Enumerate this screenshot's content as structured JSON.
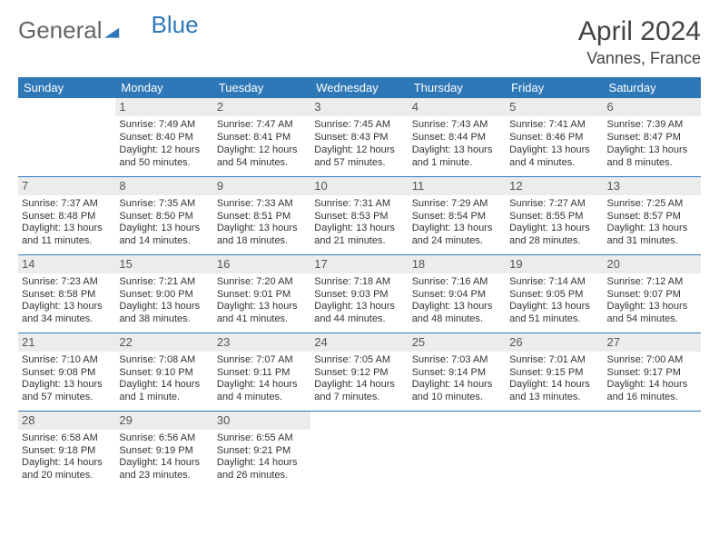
{
  "brand": {
    "part1": "General",
    "part2": "Blue"
  },
  "title": "April 2024",
  "location": "Vannes, France",
  "colors": {
    "header_bg": "#2f78b8",
    "header_fg": "#ffffff",
    "daynum_bg": "#ececec",
    "rule": "#2f78b8",
    "text": "#333333"
  },
  "weekdays": [
    "Sunday",
    "Monday",
    "Tuesday",
    "Wednesday",
    "Thursday",
    "Friday",
    "Saturday"
  ],
  "weeks": [
    [
      {
        "n": "",
        "sr": "",
        "ss": "",
        "d1": "",
        "d2": "",
        "empty": true
      },
      {
        "n": "1",
        "sr": "Sunrise: 7:49 AM",
        "ss": "Sunset: 8:40 PM",
        "d1": "Daylight: 12 hours",
        "d2": "and 50 minutes."
      },
      {
        "n": "2",
        "sr": "Sunrise: 7:47 AM",
        "ss": "Sunset: 8:41 PM",
        "d1": "Daylight: 12 hours",
        "d2": "and 54 minutes."
      },
      {
        "n": "3",
        "sr": "Sunrise: 7:45 AM",
        "ss": "Sunset: 8:43 PM",
        "d1": "Daylight: 12 hours",
        "d2": "and 57 minutes."
      },
      {
        "n": "4",
        "sr": "Sunrise: 7:43 AM",
        "ss": "Sunset: 8:44 PM",
        "d1": "Daylight: 13 hours",
        "d2": "and 1 minute."
      },
      {
        "n": "5",
        "sr": "Sunrise: 7:41 AM",
        "ss": "Sunset: 8:46 PM",
        "d1": "Daylight: 13 hours",
        "d2": "and 4 minutes."
      },
      {
        "n": "6",
        "sr": "Sunrise: 7:39 AM",
        "ss": "Sunset: 8:47 PM",
        "d1": "Daylight: 13 hours",
        "d2": "and 8 minutes."
      }
    ],
    [
      {
        "n": "7",
        "sr": "Sunrise: 7:37 AM",
        "ss": "Sunset: 8:48 PM",
        "d1": "Daylight: 13 hours",
        "d2": "and 11 minutes."
      },
      {
        "n": "8",
        "sr": "Sunrise: 7:35 AM",
        "ss": "Sunset: 8:50 PM",
        "d1": "Daylight: 13 hours",
        "d2": "and 14 minutes."
      },
      {
        "n": "9",
        "sr": "Sunrise: 7:33 AM",
        "ss": "Sunset: 8:51 PM",
        "d1": "Daylight: 13 hours",
        "d2": "and 18 minutes."
      },
      {
        "n": "10",
        "sr": "Sunrise: 7:31 AM",
        "ss": "Sunset: 8:53 PM",
        "d1": "Daylight: 13 hours",
        "d2": "and 21 minutes."
      },
      {
        "n": "11",
        "sr": "Sunrise: 7:29 AM",
        "ss": "Sunset: 8:54 PM",
        "d1": "Daylight: 13 hours",
        "d2": "and 24 minutes."
      },
      {
        "n": "12",
        "sr": "Sunrise: 7:27 AM",
        "ss": "Sunset: 8:55 PM",
        "d1": "Daylight: 13 hours",
        "d2": "and 28 minutes."
      },
      {
        "n": "13",
        "sr": "Sunrise: 7:25 AM",
        "ss": "Sunset: 8:57 PM",
        "d1": "Daylight: 13 hours",
        "d2": "and 31 minutes."
      }
    ],
    [
      {
        "n": "14",
        "sr": "Sunrise: 7:23 AM",
        "ss": "Sunset: 8:58 PM",
        "d1": "Daylight: 13 hours",
        "d2": "and 34 minutes."
      },
      {
        "n": "15",
        "sr": "Sunrise: 7:21 AM",
        "ss": "Sunset: 9:00 PM",
        "d1": "Daylight: 13 hours",
        "d2": "and 38 minutes."
      },
      {
        "n": "16",
        "sr": "Sunrise: 7:20 AM",
        "ss": "Sunset: 9:01 PM",
        "d1": "Daylight: 13 hours",
        "d2": "and 41 minutes."
      },
      {
        "n": "17",
        "sr": "Sunrise: 7:18 AM",
        "ss": "Sunset: 9:03 PM",
        "d1": "Daylight: 13 hours",
        "d2": "and 44 minutes."
      },
      {
        "n": "18",
        "sr": "Sunrise: 7:16 AM",
        "ss": "Sunset: 9:04 PM",
        "d1": "Daylight: 13 hours",
        "d2": "and 48 minutes."
      },
      {
        "n": "19",
        "sr": "Sunrise: 7:14 AM",
        "ss": "Sunset: 9:05 PM",
        "d1": "Daylight: 13 hours",
        "d2": "and 51 minutes."
      },
      {
        "n": "20",
        "sr": "Sunrise: 7:12 AM",
        "ss": "Sunset: 9:07 PM",
        "d1": "Daylight: 13 hours",
        "d2": "and 54 minutes."
      }
    ],
    [
      {
        "n": "21",
        "sr": "Sunrise: 7:10 AM",
        "ss": "Sunset: 9:08 PM",
        "d1": "Daylight: 13 hours",
        "d2": "and 57 minutes."
      },
      {
        "n": "22",
        "sr": "Sunrise: 7:08 AM",
        "ss": "Sunset: 9:10 PM",
        "d1": "Daylight: 14 hours",
        "d2": "and 1 minute."
      },
      {
        "n": "23",
        "sr": "Sunrise: 7:07 AM",
        "ss": "Sunset: 9:11 PM",
        "d1": "Daylight: 14 hours",
        "d2": "and 4 minutes."
      },
      {
        "n": "24",
        "sr": "Sunrise: 7:05 AM",
        "ss": "Sunset: 9:12 PM",
        "d1": "Daylight: 14 hours",
        "d2": "and 7 minutes."
      },
      {
        "n": "25",
        "sr": "Sunrise: 7:03 AM",
        "ss": "Sunset: 9:14 PM",
        "d1": "Daylight: 14 hours",
        "d2": "and 10 minutes."
      },
      {
        "n": "26",
        "sr": "Sunrise: 7:01 AM",
        "ss": "Sunset: 9:15 PM",
        "d1": "Daylight: 14 hours",
        "d2": "and 13 minutes."
      },
      {
        "n": "27",
        "sr": "Sunrise: 7:00 AM",
        "ss": "Sunset: 9:17 PM",
        "d1": "Daylight: 14 hours",
        "d2": "and 16 minutes."
      }
    ],
    [
      {
        "n": "28",
        "sr": "Sunrise: 6:58 AM",
        "ss": "Sunset: 9:18 PM",
        "d1": "Daylight: 14 hours",
        "d2": "and 20 minutes."
      },
      {
        "n": "29",
        "sr": "Sunrise: 6:56 AM",
        "ss": "Sunset: 9:19 PM",
        "d1": "Daylight: 14 hours",
        "d2": "and 23 minutes."
      },
      {
        "n": "30",
        "sr": "Sunrise: 6:55 AM",
        "ss": "Sunset: 9:21 PM",
        "d1": "Daylight: 14 hours",
        "d2": "and 26 minutes."
      },
      {
        "n": "",
        "sr": "",
        "ss": "",
        "d1": "",
        "d2": "",
        "empty": true
      },
      {
        "n": "",
        "sr": "",
        "ss": "",
        "d1": "",
        "d2": "",
        "empty": true
      },
      {
        "n": "",
        "sr": "",
        "ss": "",
        "d1": "",
        "d2": "",
        "empty": true
      },
      {
        "n": "",
        "sr": "",
        "ss": "",
        "d1": "",
        "d2": "",
        "empty": true
      }
    ]
  ]
}
